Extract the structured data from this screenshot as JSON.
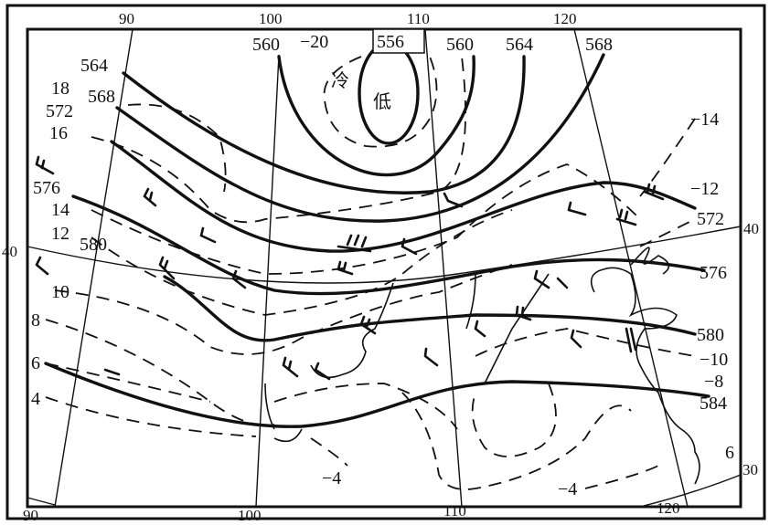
{
  "map": {
    "longitude_labels_top": [
      "90",
      "100",
      "110",
      "120"
    ],
    "longitude_labels_bottom": [
      "90",
      "100",
      "110",
      "120"
    ],
    "latitude_labels": {
      "lat40_left": "40",
      "lat40_right": "40",
      "lat30_right": "30"
    },
    "low_center": {
      "char_cold": "冷",
      "char_low": "低"
    },
    "height_contours": {
      "c556": "556",
      "c560_left": "560",
      "c560_right": "560",
      "c564_top": "564",
      "c568_top": "568",
      "c564_left": "564",
      "c568_left": "568",
      "c572_left": "572",
      "c576_left": "576",
      "c580_left": "580",
      "c572_right": "572",
      "c576_right": "576",
      "c580_right": "580",
      "c584_right": "584"
    },
    "isotherms": {
      "t_minus20": "−20",
      "t18": "18",
      "t16": "16",
      "t14": "14",
      "t12": "12",
      "t10": "10",
      "t8": "8",
      "t6": "6",
      "t4": "4",
      "t_minus14_right": "−14",
      "t_minus12_right": "−12",
      "t_minus10_right": "−10",
      "t_minus8_right": "−8",
      "t_minus6_right": "6",
      "t_minus4_a": "−4",
      "t_minus4_b": "−4"
    },
    "colors": {
      "ink": "#111111",
      "paper": "#ffffff"
    }
  }
}
